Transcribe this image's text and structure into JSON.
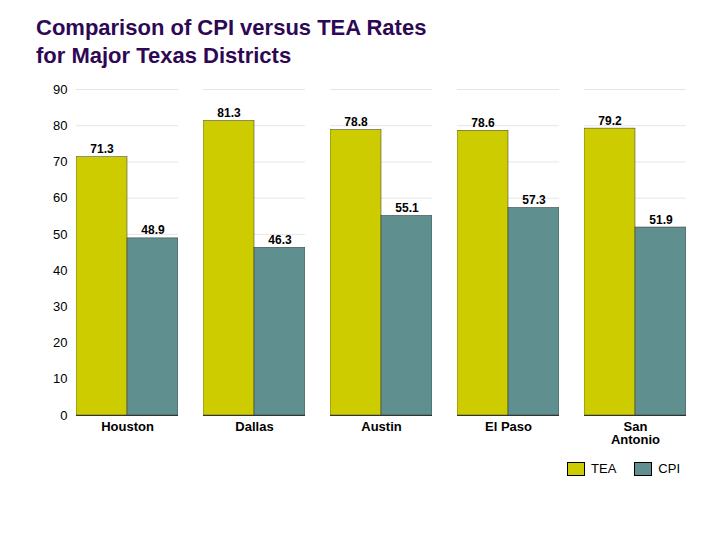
{
  "chart_data": {
    "type": "bar",
    "title": "Comparison of CPI versus TEA Rates",
    "subtitle": "for Major Texas Districts",
    "categories": [
      "Houston",
      "Dallas",
      "Austin",
      "El Paso",
      "San\nAntonio"
    ],
    "series": [
      {
        "name": "TEA",
        "color": "#CCCC00",
        "values": [
          71.3,
          81.3,
          78.8,
          78.6,
          79.2
        ]
      },
      {
        "name": "CPI",
        "color": "#5F8F8F",
        "values": [
          48.9,
          46.3,
          55.1,
          57.3,
          51.9
        ]
      }
    ],
    "ylim": [
      0,
      90
    ],
    "yticks": [
      0,
      10,
      20,
      30,
      40,
      50,
      60,
      70,
      80,
      90
    ],
    "grid": true,
    "legend": "lower right",
    "data_labels": true
  }
}
